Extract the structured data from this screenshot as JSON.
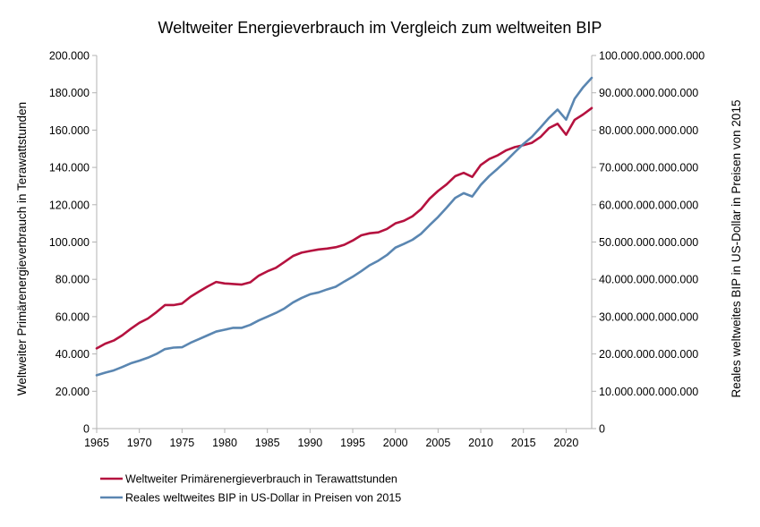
{
  "chart_data": {
    "type": "line",
    "title": "Weltweiter Energieverbrauch im Vergleich zum weltweiten BIP",
    "xlabel": "",
    "ylabel_left": "Weltweiter Primärenergieverbrauch in Terawattstunden",
    "ylabel_right": "Reales weltweites BIP in US-Dollar in Preisen von 2015",
    "xlim": [
      1965,
      2023
    ],
    "x_ticks": [
      1965,
      1970,
      1975,
      1980,
      1985,
      1990,
      1995,
      2000,
      2005,
      2010,
      2015,
      2020
    ],
    "x_tick_labels": [
      "1965",
      "1970",
      "1975",
      "1980",
      "1985",
      "1990",
      "1995",
      "2000",
      "2005",
      "2010",
      "2015",
      "2020"
    ],
    "ylim_left": [
      0,
      200000
    ],
    "y_ticks_left": [
      0,
      20000,
      40000,
      60000,
      80000,
      100000,
      120000,
      140000,
      160000,
      180000,
      200000
    ],
    "y_tick_labels_left": [
      "0",
      "20.000",
      "40.000",
      "60.000",
      "80.000",
      "100.000",
      "120.000",
      "140.000",
      "160.000",
      "180.000",
      "200.000"
    ],
    "ylim_right": [
      0,
      100000000000000
    ],
    "y_ticks_right": [
      0,
      10000000000000,
      20000000000000,
      30000000000000,
      40000000000000,
      50000000000000,
      60000000000000,
      70000000000000,
      80000000000000,
      90000000000000,
      100000000000000
    ],
    "y_tick_labels_right": [
      "0",
      "10.000.000.000.000",
      "20.000.000.000.000",
      "30.000.000.000.000",
      "40.000.000.000.000",
      "50.000.000.000.000",
      "60.000.000.000.000",
      "70.000.000.000.000",
      "80.000.000.000.000",
      "90.000.000.000.000",
      "100.000.000.000.000"
    ],
    "grid": false,
    "legend_position": "bottom-left",
    "x": [
      1965,
      1966,
      1967,
      1968,
      1969,
      1970,
      1971,
      1972,
      1973,
      1974,
      1975,
      1976,
      1977,
      1978,
      1979,
      1980,
      1981,
      1982,
      1983,
      1984,
      1985,
      1986,
      1987,
      1988,
      1989,
      1990,
      1991,
      1992,
      1993,
      1994,
      1995,
      1996,
      1997,
      1998,
      1999,
      2000,
      2001,
      2002,
      2003,
      2004,
      2005,
      2006,
      2007,
      2008,
      2009,
      2010,
      2011,
      2012,
      2013,
      2014,
      2015,
      2016,
      2017,
      2018,
      2019,
      2020,
      2021,
      2022,
      2023
    ],
    "series": [
      {
        "name": "Weltweiter Primärenergieverbrauch in Terawattstunden",
        "axis": "left",
        "color": "#b5123f",
        "values": [
          43000,
          45500,
          47200,
          50000,
          53500,
          56700,
          59000,
          62400,
          66200,
          66200,
          67000,
          70700,
          73500,
          76200,
          78600,
          77800,
          77500,
          77200,
          78400,
          82000,
          84300,
          86200,
          89300,
          92500,
          94300,
          95200,
          96000,
          96500,
          97200,
          98500,
          100800,
          103600,
          104700,
          105200,
          107000,
          110000,
          111400,
          113800,
          117600,
          123200,
          127400,
          130900,
          135300,
          137100,
          134900,
          141300,
          144500,
          146500,
          149200,
          150900,
          151900,
          153200,
          156300,
          161100,
          163400,
          157500,
          165500,
          168400,
          171800
        ]
      },
      {
        "name": "Reales weltweites BIP in US-Dollar in Preisen von 2015",
        "axis": "right",
        "color": "#5a86b1",
        "values": [
          14300000000000,
          15000000000000,
          15600000000000,
          16500000000000,
          17500000000000,
          18200000000000,
          19000000000000,
          20000000000000,
          21300000000000,
          21700000000000,
          21800000000000,
          23000000000000,
          24000000000000,
          25000000000000,
          26000000000000,
          26500000000000,
          27000000000000,
          27000000000000,
          27800000000000,
          29000000000000,
          30000000000000,
          31000000000000,
          32200000000000,
          33800000000000,
          35000000000000,
          36000000000000,
          36500000000000,
          37300000000000,
          38000000000000,
          39400000000000,
          40700000000000,
          42200000000000,
          43800000000000,
          45000000000000,
          46500000000000,
          48500000000000,
          49500000000000,
          50600000000000,
          52200000000000,
          54500000000000,
          56700000000000,
          59200000000000,
          61800000000000,
          63100000000000,
          62200000000000,
          65300000000000,
          67700000000000,
          69700000000000,
          71800000000000,
          74100000000000,
          76300000000000,
          78200000000000,
          80700000000000,
          83300000000000,
          85500000000000,
          82800000000000,
          88400000000000,
          91500000000000,
          94000000000000
        ]
      }
    ]
  }
}
